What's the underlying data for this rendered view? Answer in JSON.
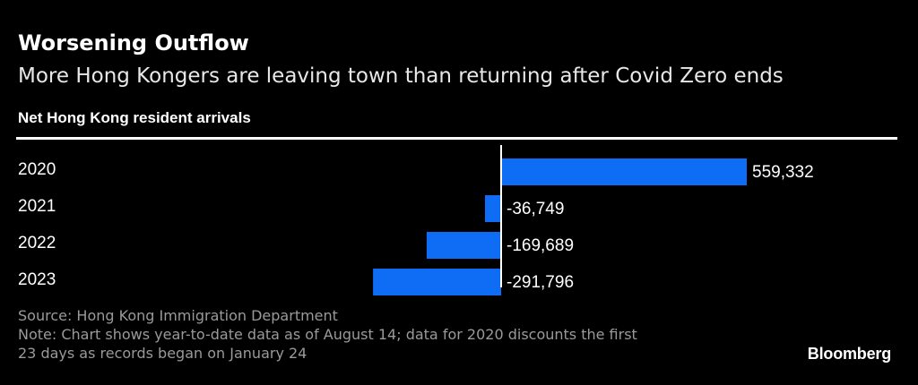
{
  "header": {
    "title": "Worsening Outflow",
    "subtitle": "More Hong Kongers are leaving town than returning after Covid Zero ends",
    "chart_label": "Net Hong Kong resident arrivals"
  },
  "chart_data": {
    "type": "bar",
    "orientation": "horizontal",
    "title": "Net Hong Kong resident arrivals",
    "categories": [
      "2020",
      "2021",
      "2022",
      "2023"
    ],
    "values": [
      559332,
      -36749,
      -169689,
      -291796
    ],
    "value_labels": [
      "559,332",
      "-36,749",
      "-169,689",
      "-291,796"
    ],
    "xlabel": "",
    "ylabel": "",
    "xlim": [
      -291796,
      559332
    ],
    "grid": false,
    "bar_color": "#0f6cf5",
    "zero_line_color": "#ffffff"
  },
  "footer": {
    "source": "Source: Hong Kong Immigration Department",
    "note_line1": "Note: Chart shows year-to-date data as of August 14; data for 2020 discounts the first",
    "note_line2": "23 days as records began on January 24",
    "brand": "Bloomberg"
  },
  "colors": {
    "background": "#000000",
    "text": "#ffffff",
    "muted_text": "#9a9a9a",
    "bar": "#0f6cf5"
  }
}
